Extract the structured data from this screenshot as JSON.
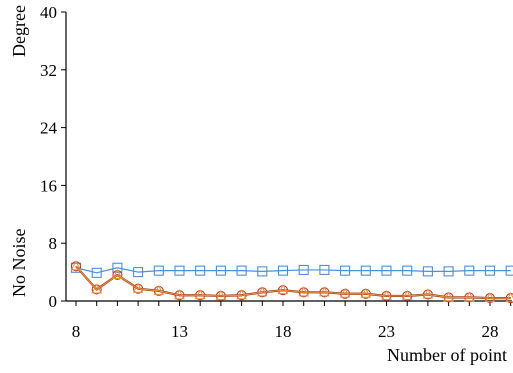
{
  "chart_data": {
    "type": "line",
    "xlabel": "Number of point",
    "ylabel": "Degree",
    "ylabel2": "No Noise",
    "xlim": [
      8,
      29
    ],
    "ylim": [
      0,
      40
    ],
    "xticks": [
      8,
      13,
      18,
      23,
      28
    ],
    "yticks": [
      0,
      8,
      16,
      24,
      32,
      40
    ],
    "grid": false,
    "x": [
      8,
      9,
      10,
      11,
      12,
      13,
      14,
      15,
      16,
      17,
      18,
      19,
      20,
      21,
      22,
      23,
      24,
      25,
      26,
      27,
      28,
      29
    ],
    "series": [
      {
        "values": [
          4.6,
          3.9,
          4.6,
          4.0,
          4.2,
          4.2,
          4.2,
          4.2,
          4.2,
          4.1,
          4.2,
          4.3,
          4.3,
          4.2,
          4.2,
          4.2,
          4.2,
          4.1,
          4.1,
          4.2,
          4.2,
          4.2
        ],
        "color": "#4a90d9",
        "marker": "square"
      },
      {
        "values": [
          4.8,
          1.6,
          3.6,
          1.7,
          1.4,
          0.8,
          0.8,
          0.7,
          0.8,
          1.2,
          1.5,
          1.2,
          1.2,
          1.0,
          1.0,
          0.7,
          0.7,
          0.9,
          0.5,
          0.5,
          0.4,
          0.4
        ],
        "color": "#c0392b",
        "line_color": "#8b2a10",
        "marker": "circle"
      },
      {
        "values": [
          4.8,
          1.6,
          3.6,
          1.7,
          1.4,
          0.8,
          0.8,
          0.7,
          0.8,
          1.2,
          1.5,
          1.2,
          1.2,
          1.0,
          1.0,
          0.7,
          0.7,
          0.9,
          0.5,
          0.5,
          0.4,
          0.4
        ],
        "color": "#e8913a",
        "marker": "triangle"
      }
    ]
  }
}
